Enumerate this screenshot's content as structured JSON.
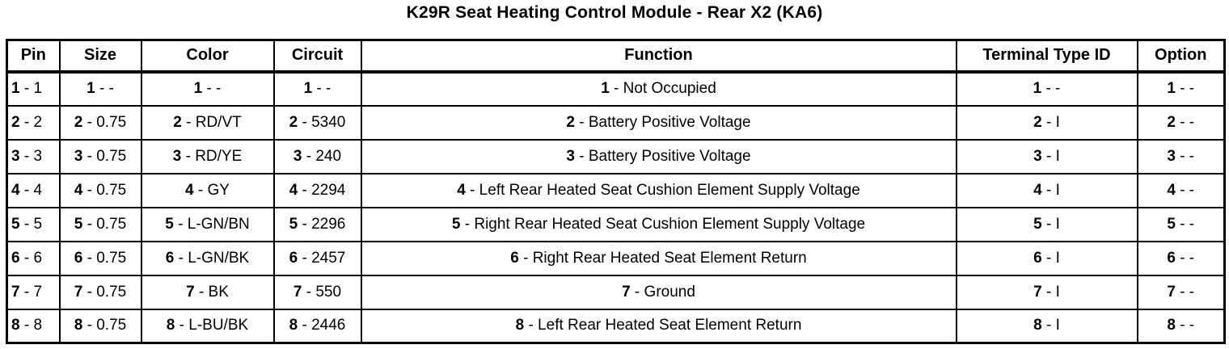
{
  "title": "K29R Seat Heating Control Module - Rear X2 (KA6)",
  "table": {
    "columns": [
      {
        "key": "pin",
        "label": "Pin"
      },
      {
        "key": "size",
        "label": "Size"
      },
      {
        "key": "color",
        "label": "Color"
      },
      {
        "key": "circuit",
        "label": "Circuit"
      },
      {
        "key": "function",
        "label": "Function"
      },
      {
        "key": "terminal",
        "label": "Terminal Type ID"
      },
      {
        "key": "option",
        "label": "Option"
      }
    ],
    "separator": " - ",
    "rows": [
      {
        "pin": {
          "n": "1",
          "v": "1"
        },
        "size": {
          "n": "1",
          "v": "-"
        },
        "color": {
          "n": "1",
          "v": "-"
        },
        "circuit": {
          "n": "1",
          "v": "-"
        },
        "function": {
          "n": "1",
          "v": "Not Occupied"
        },
        "terminal": {
          "n": "1",
          "v": "-"
        },
        "option": {
          "n": "1",
          "v": "-"
        }
      },
      {
        "pin": {
          "n": "2",
          "v": "2"
        },
        "size": {
          "n": "2",
          "v": "0.75"
        },
        "color": {
          "n": "2",
          "v": "RD/VT"
        },
        "circuit": {
          "n": "2",
          "v": "5340"
        },
        "function": {
          "n": "2",
          "v": "Battery Positive Voltage"
        },
        "terminal": {
          "n": "2",
          "v": "I"
        },
        "option": {
          "n": "2",
          "v": "-"
        }
      },
      {
        "pin": {
          "n": "3",
          "v": "3"
        },
        "size": {
          "n": "3",
          "v": "0.75"
        },
        "color": {
          "n": "3",
          "v": "RD/YE"
        },
        "circuit": {
          "n": "3",
          "v": "240"
        },
        "function": {
          "n": "3",
          "v": "Battery Positive Voltage"
        },
        "terminal": {
          "n": "3",
          "v": "I"
        },
        "option": {
          "n": "3",
          "v": "-"
        }
      },
      {
        "pin": {
          "n": "4",
          "v": "4"
        },
        "size": {
          "n": "4",
          "v": "0.75"
        },
        "color": {
          "n": "4",
          "v": "GY"
        },
        "circuit": {
          "n": "4",
          "v": "2294"
        },
        "function": {
          "n": "4",
          "v": "Left Rear Heated Seat Cushion Element Supply Voltage"
        },
        "terminal": {
          "n": "4",
          "v": "I"
        },
        "option": {
          "n": "4",
          "v": "-"
        }
      },
      {
        "pin": {
          "n": "5",
          "v": "5"
        },
        "size": {
          "n": "5",
          "v": "0.75"
        },
        "color": {
          "n": "5",
          "v": "L-GN/BN"
        },
        "circuit": {
          "n": "5",
          "v": "2296"
        },
        "function": {
          "n": "5",
          "v": "Right Rear Heated Seat Cushion Element Supply Voltage"
        },
        "terminal": {
          "n": "5",
          "v": "I"
        },
        "option": {
          "n": "5",
          "v": "-"
        }
      },
      {
        "pin": {
          "n": "6",
          "v": "6"
        },
        "size": {
          "n": "6",
          "v": "0.75"
        },
        "color": {
          "n": "6",
          "v": "L-GN/BK"
        },
        "circuit": {
          "n": "6",
          "v": "2457"
        },
        "function": {
          "n": "6",
          "v": "Right Rear Heated Seat Element Return"
        },
        "terminal": {
          "n": "6",
          "v": "I"
        },
        "option": {
          "n": "6",
          "v": "-"
        }
      },
      {
        "pin": {
          "n": "7",
          "v": "7"
        },
        "size": {
          "n": "7",
          "v": "0.75"
        },
        "color": {
          "n": "7",
          "v": "BK"
        },
        "circuit": {
          "n": "7",
          "v": "550"
        },
        "function": {
          "n": "7",
          "v": "Ground"
        },
        "terminal": {
          "n": "7",
          "v": "I"
        },
        "option": {
          "n": "7",
          "v": "-"
        }
      },
      {
        "pin": {
          "n": "8",
          "v": "8"
        },
        "size": {
          "n": "8",
          "v": "0.75"
        },
        "color": {
          "n": "8",
          "v": "L-BU/BK"
        },
        "circuit": {
          "n": "8",
          "v": "2446"
        },
        "function": {
          "n": "8",
          "v": "Left Rear Heated Seat Element Return"
        },
        "terminal": {
          "n": "8",
          "v": "I"
        },
        "option": {
          "n": "8",
          "v": "-"
        }
      }
    ]
  },
  "colors": {
    "text": "#000000",
    "background": "#ffffff",
    "border": "#000000"
  }
}
